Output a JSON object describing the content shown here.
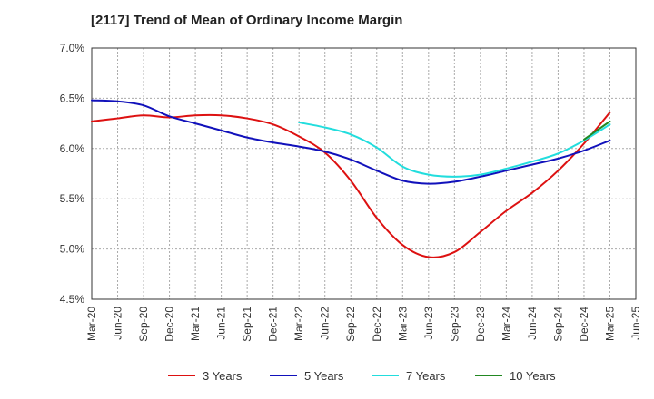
{
  "chart_data": {
    "type": "line",
    "title": "[2117]  Trend of Mean of Ordinary Income Margin",
    "xlabel": "",
    "ylabel": "",
    "x_ticks": [
      "Mar-20",
      "Jun-20",
      "Sep-20",
      "Dec-20",
      "Mar-21",
      "Jun-21",
      "Sep-21",
      "Dec-21",
      "Mar-22",
      "Jun-22",
      "Sep-22",
      "Dec-22",
      "Mar-23",
      "Jun-23",
      "Sep-23",
      "Dec-23",
      "Mar-24",
      "Jun-24",
      "Sep-24",
      "Dec-24",
      "Mar-25",
      "Jun-25"
    ],
    "y_ticks": [
      "4.5%",
      "5.0%",
      "5.5%",
      "6.0%",
      "6.5%",
      "7.0%"
    ],
    "ylim": [
      4.5,
      7.0
    ],
    "grid": true,
    "legend_position": "bottom",
    "series": [
      {
        "name": "3 Years",
        "color": "#dd1111",
        "x": [
          "Mar-20",
          "Jun-20",
          "Sep-20",
          "Dec-20",
          "Mar-21",
          "Jun-21",
          "Sep-21",
          "Dec-21",
          "Mar-22",
          "Jun-22",
          "Sep-22",
          "Dec-22",
          "Mar-23",
          "Jun-23",
          "Sep-23",
          "Dec-23",
          "Mar-24",
          "Jun-24",
          "Sep-24",
          "Dec-24",
          "Mar-25"
        ],
        "values": [
          6.27,
          6.3,
          6.33,
          6.31,
          6.33,
          6.33,
          6.3,
          6.24,
          6.12,
          5.96,
          5.68,
          5.31,
          5.04,
          4.92,
          4.97,
          5.17,
          5.38,
          5.56,
          5.78,
          6.05,
          6.36
        ]
      },
      {
        "name": "5 Years",
        "color": "#1111bb",
        "x": [
          "Mar-20",
          "Jun-20",
          "Sep-20",
          "Dec-20",
          "Mar-21",
          "Jun-21",
          "Sep-21",
          "Dec-21",
          "Mar-22",
          "Jun-22",
          "Sep-22",
          "Dec-22",
          "Mar-23",
          "Jun-23",
          "Sep-23",
          "Dec-23",
          "Mar-24",
          "Jun-24",
          "Sep-24",
          "Dec-24",
          "Mar-25"
        ],
        "values": [
          6.48,
          6.47,
          6.43,
          6.32,
          6.25,
          6.18,
          6.11,
          6.06,
          6.02,
          5.97,
          5.89,
          5.78,
          5.68,
          5.65,
          5.67,
          5.72,
          5.78,
          5.84,
          5.9,
          5.98,
          6.08
        ]
      },
      {
        "name": "7 Years",
        "color": "#22dddd",
        "x": [
          "Mar-22",
          "Jun-22",
          "Sep-22",
          "Dec-22",
          "Mar-23",
          "Jun-23",
          "Sep-23",
          "Dec-23",
          "Mar-24",
          "Jun-24",
          "Sep-24",
          "Dec-24",
          "Mar-25"
        ],
        "values": [
          6.26,
          6.21,
          6.14,
          6.01,
          5.82,
          5.74,
          5.72,
          5.74,
          5.8,
          5.87,
          5.95,
          6.08,
          6.24
        ]
      },
      {
        "name": "10 Years",
        "color": "#228822",
        "x": [
          "Dec-24",
          "Mar-25"
        ],
        "values": [
          6.09,
          6.27
        ]
      }
    ]
  }
}
